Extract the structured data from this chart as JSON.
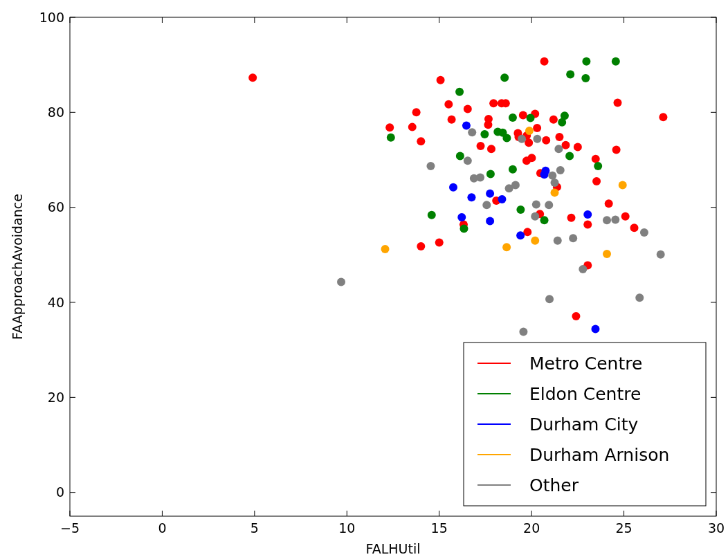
{
  "chart_data": {
    "type": "scatter",
    "xlabel": "FALHUtil",
    "ylabel": "FAApproachAvoidance",
    "xlim": [
      -5,
      30
    ],
    "ylim": [
      -5,
      100
    ],
    "xticks": [
      {
        "value": -5,
        "label": "−5"
      },
      0,
      5,
      10,
      15,
      20,
      25,
      30
    ],
    "yticks": [
      0,
      20,
      40,
      60,
      80,
      100
    ],
    "grid": false,
    "legend": "bottom right",
    "marker": "circle",
    "series": [
      {
        "name": "Metro Centre",
        "color": "#ff0000",
        "x": [
          4.9,
          15.07,
          15.51,
          13.76,
          16.54,
          15.67,
          12.32,
          13.54,
          14.01,
          17.94,
          18.38,
          18.6,
          17.67,
          17.65,
          17.24,
          17.82,
          19.54,
          20.19,
          19.26,
          19.3,
          19.74,
          19.85,
          20.3,
          19.73,
          20.01,
          20.48,
          18.09,
          20.69,
          24.66,
          27.13,
          21.19,
          20.79,
          21.51,
          21.85,
          22.5,
          24.59,
          23.47,
          23.52,
          21.38,
          24.18,
          25.08,
          25.56,
          22.15,
          23.04,
          20.45,
          23.04,
          22.41,
          16.32,
          14.01,
          15.0,
          19.78
        ],
        "values": [
          87.3,
          86.8,
          81.7,
          80.0,
          80.7,
          78.5,
          76.8,
          76.9,
          73.9,
          81.9,
          81.9,
          81.9,
          78.6,
          77.4,
          72.9,
          72.3,
          79.4,
          79.7,
          75.6,
          74.8,
          75.1,
          73.6,
          76.7,
          69.8,
          70.4,
          67.2,
          61.4,
          90.7,
          82.0,
          79.0,
          78.5,
          74.1,
          74.8,
          73.1,
          72.7,
          72.1,
          70.2,
          65.5,
          64.3,
          60.8,
          58.1,
          55.7,
          57.8,
          56.4,
          58.6,
          47.8,
          37.1,
          56.4,
          51.8,
          52.6,
          54.8
        ]
      },
      {
        "name": "Eldon Centre",
        "color": "#008000",
        "x": [
          18.54,
          16.1,
          12.38,
          18.98,
          19.94,
          17.46,
          18.17,
          18.44,
          18.66,
          16.13,
          17.78,
          18.98,
          22.97,
          24.56,
          22.1,
          22.93,
          21.79,
          21.65,
          22.06,
          23.6,
          14.59,
          16.34,
          19.41,
          20.69
        ],
        "values": [
          87.3,
          84.3,
          74.7,
          78.9,
          78.8,
          75.4,
          75.9,
          75.7,
          74.6,
          70.8,
          67.0,
          68.0,
          90.7,
          90.7,
          88.0,
          87.2,
          79.3,
          77.9,
          70.8,
          68.7,
          58.4,
          55.5,
          59.5,
          57.3
        ]
      },
      {
        "name": "Durham City",
        "color": "#0000ff",
        "x": [
          16.47,
          15.76,
          16.75,
          17.75,
          18.4,
          20.76,
          20.69,
          16.22,
          17.75,
          19.4,
          23.04,
          23.46
        ],
        "values": [
          77.2,
          64.2,
          62.1,
          62.9,
          61.7,
          67.7,
          66.9,
          57.9,
          57.1,
          54.1,
          58.5,
          34.4
        ]
      },
      {
        "name": "Durham Arnison",
        "color": "#ffa500",
        "x": [
          19.88,
          24.93,
          21.25,
          12.07,
          18.65,
          20.19,
          24.08
        ],
        "values": [
          76.1,
          64.7,
          63.1,
          51.2,
          51.6,
          53.0,
          50.2
        ]
      },
      {
        "name": "Other",
        "color": "#808080",
        "x": [
          16.78,
          19.47,
          20.31,
          16.54,
          14.54,
          16.88,
          17.22,
          18.78,
          19.13,
          17.57,
          20.25,
          21.47,
          21.56,
          21.13,
          21.25,
          20.94,
          20.19,
          24.08,
          24.54,
          26.1,
          21.41,
          22.25,
          26.99,
          22.78,
          25.85,
          20.97,
          19.56,
          9.69
        ],
        "values": [
          75.8,
          74.4,
          74.4,
          69.8,
          68.7,
          66.1,
          66.3,
          64.0,
          64.7,
          60.5,
          60.6,
          72.3,
          67.8,
          66.7,
          65.2,
          60.5,
          58.1,
          57.3,
          57.4,
          54.7,
          53.0,
          53.5,
          50.1,
          47.0,
          41.0,
          40.7,
          33.8,
          44.3
        ]
      }
    ]
  }
}
